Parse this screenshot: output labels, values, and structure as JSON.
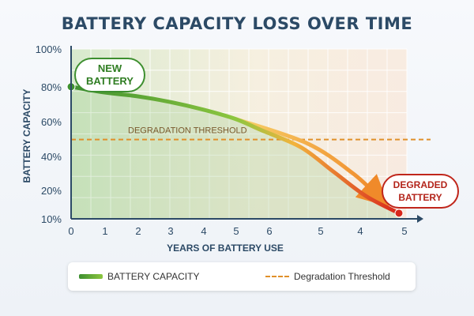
{
  "chart_data": {
    "type": "line",
    "title": "BATTERY CAPACITY LOSS OVER TIME",
    "xlabel": "YEARS OF BATTERY USE",
    "ylabel": "BATTERY CAPACITY",
    "x_tick_labels": [
      "0",
      "1",
      "2",
      "3",
      "4",
      "5",
      "6",
      "5",
      "4",
      "5"
    ],
    "y_tick_labels": [
      "10%",
      "20%",
      "40%",
      "60%",
      "80%",
      "100%"
    ],
    "ylim": [
      10,
      100
    ],
    "grid": true,
    "series": [
      {
        "name": "BATTERY CAPACITY",
        "x": [
          0,
          1,
          2,
          3,
          4,
          5,
          5.8,
          7,
          8,
          9,
          10
        ],
        "y": [
          80,
          77,
          75,
          72,
          68,
          63,
          57,
          48,
          35,
          22,
          13
        ]
      }
    ],
    "threshold": {
      "name": "Degradation Threshold",
      "label": "DEGRADATION THRESHOLD",
      "value": 52
    },
    "annotations": {
      "start": [
        "NEW",
        "BATTERY"
      ],
      "end": [
        "DEGRADED",
        "BATTERY"
      ]
    },
    "legend": {
      "position": "bottom",
      "items": [
        "BATTERY CAPACITY",
        "Degradation Threshold"
      ]
    },
    "colors": {
      "line_start": "#3d8f2f",
      "line_mid": "#f2b33d",
      "line_end": "#d8261b",
      "threshold": "#e0902a",
      "axis": "#2c4a66"
    }
  }
}
